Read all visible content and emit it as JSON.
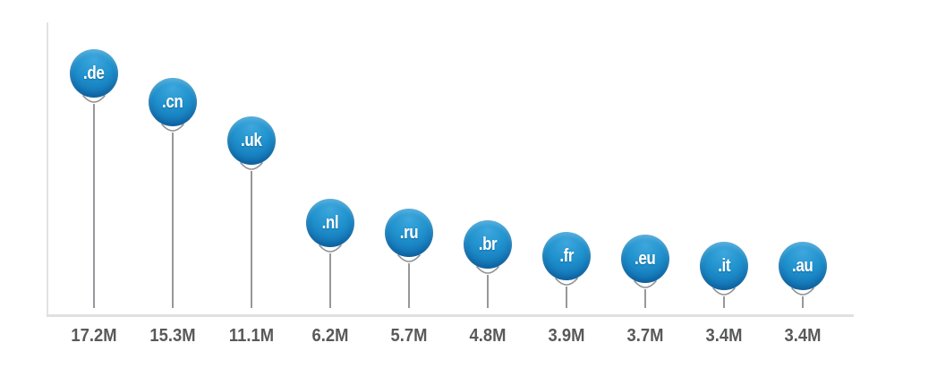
{
  "chart_data": {
    "type": "bar",
    "style": "balloon-lollipop",
    "title": "",
    "categories": [
      ".de",
      ".cn",
      ".uk",
      ".nl",
      ".ru",
      ".br",
      ".fr",
      ".eu",
      ".it",
      ".au"
    ],
    "values": [
      17.2,
      15.3,
      11.1,
      6.2,
      5.7,
      4.8,
      3.9,
      3.7,
      3.4,
      3.4
    ],
    "value_labels": [
      "17.2M",
      "15.3M",
      "11.1M",
      "6.2M",
      "5.7M",
      "4.8M",
      "3.9M",
      "3.7M",
      "3.4M",
      "3.4M"
    ],
    "unit": "M",
    "xlabel": "",
    "ylabel": "",
    "ylim": [
      0,
      21
    ],
    "grid": false,
    "legend": "none",
    "axes": {
      "y_axis_line_visible": true,
      "x_baseline_visible": true,
      "tick_labels_position": "below-baseline"
    },
    "colors": {
      "balloon_top": "#3ea7dd",
      "balloon_mid": "#2092cd",
      "balloon_bottom": "#0d67ae",
      "balloon_text": "#ffffff",
      "stem": "#96989b",
      "knot": "#8e9093",
      "axis_line": "#e0e0e0",
      "value_label": "#58595b",
      "background": "#ffffff"
    }
  }
}
